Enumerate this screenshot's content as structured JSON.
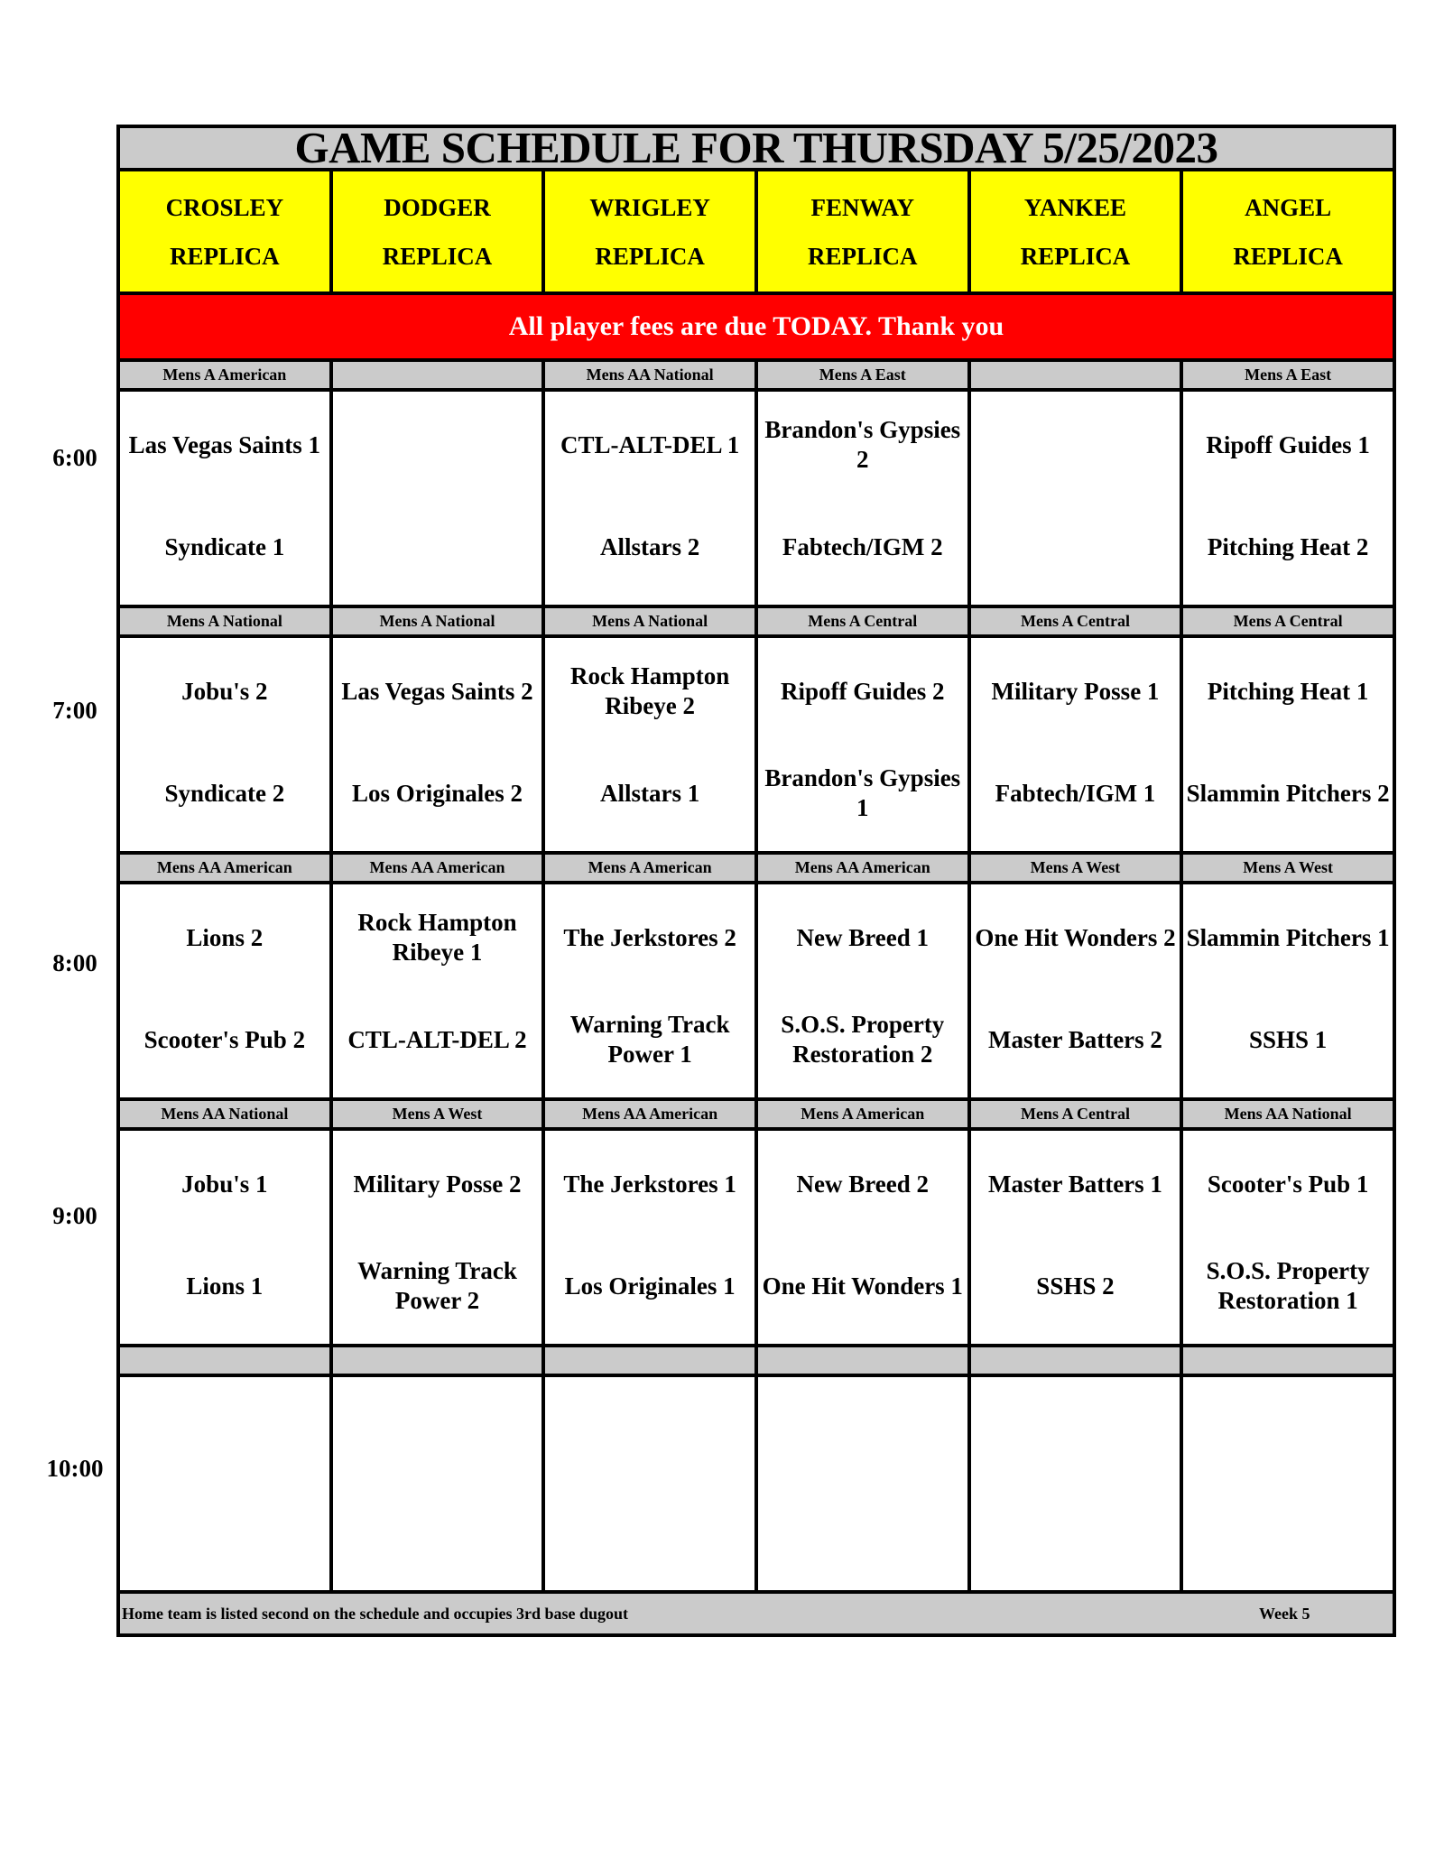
{
  "title": "GAME SCHEDULE FOR THURSDAY 5/25/2023",
  "fields": [
    {
      "name": "CROSLEY",
      "sub": "REPLICA"
    },
    {
      "name": "DODGER",
      "sub": "REPLICA"
    },
    {
      "name": "WRIGLEY",
      "sub": "REPLICA"
    },
    {
      "name": "FENWAY",
      "sub": "REPLICA"
    },
    {
      "name": "YANKEE",
      "sub": "REPLICA"
    },
    {
      "name": "ANGEL",
      "sub": "REPLICA"
    }
  ],
  "notice": "All player fees are due TODAY.  Thank you",
  "slots": [
    {
      "time": "6:00",
      "divisions": [
        "Mens A American",
        "",
        "Mens AA National",
        "Mens A East",
        "",
        "Mens A East"
      ],
      "games": [
        [
          "Las Vegas Saints 1",
          "Syndicate 1"
        ],
        [
          "",
          ""
        ],
        [
          "CTL-ALT-DEL 1",
          "Allstars 2"
        ],
        [
          "Brandon's Gypsies 2",
          "Fabtech/IGM 2"
        ],
        [
          "",
          ""
        ],
        [
          "Ripoff Guides 1",
          "Pitching Heat 2"
        ]
      ]
    },
    {
      "time": "7:00",
      "divisions": [
        "Mens A National",
        "Mens A National",
        "Mens A National",
        "Mens A Central",
        "Mens A Central",
        "Mens A Central"
      ],
      "games": [
        [
          "Jobu's 2",
          "Syndicate 2"
        ],
        [
          "Las Vegas Saints 2",
          "Los Originales 2"
        ],
        [
          "Rock Hampton Ribeye 2",
          "Allstars 1"
        ],
        [
          "Ripoff Guides 2",
          "Brandon's Gypsies 1"
        ],
        [
          "Military Posse 1",
          "Fabtech/IGM 1"
        ],
        [
          "Pitching Heat 1",
          "Slammin Pitchers 2"
        ]
      ]
    },
    {
      "time": "8:00",
      "divisions": [
        "Mens AA American",
        "Mens AA American",
        "Mens A American",
        "Mens AA American",
        "Mens A West",
        "Mens A West"
      ],
      "games": [
        [
          "Lions 2",
          "Scooter's Pub 2"
        ],
        [
          "Rock Hampton Ribeye 1",
          "CTL-ALT-DEL 2"
        ],
        [
          "The Jerkstores 2",
          "Warning Track Power 1"
        ],
        [
          "New Breed 1",
          "S.O.S. Property Restoration 2"
        ],
        [
          "One Hit Wonders 2",
          "Master Batters 2"
        ],
        [
          "Slammin Pitchers 1",
          "SSHS 1"
        ]
      ]
    },
    {
      "time": "9:00",
      "divisions": [
        "Mens AA National",
        "Mens A West",
        "Mens AA American",
        "Mens A American",
        "Mens A Central",
        "Mens AA National"
      ],
      "games": [
        [
          "Jobu's 1",
          "Lions 1"
        ],
        [
          "Military Posse 2",
          "Warning Track Power 2"
        ],
        [
          "The Jerkstores 1",
          "Los Originales 1"
        ],
        [
          "New Breed 2",
          "One Hit Wonders 1"
        ],
        [
          "Master Batters 1",
          "SSHS 2"
        ],
        [
          "Scooter's Pub 1",
          "S.O.S. Property Restoration 1"
        ]
      ]
    },
    {
      "time": "10:00",
      "divisions": [
        "",
        "",
        "",
        "",
        "",
        ""
      ],
      "games": [
        [
          "",
          ""
        ],
        [
          "",
          ""
        ],
        [
          "",
          ""
        ],
        [
          "",
          ""
        ],
        [
          "",
          ""
        ],
        [
          "",
          ""
        ]
      ]
    }
  ],
  "footer": {
    "note": "Home team is listed second on the schedule and occupies 3rd base dugout",
    "week": "Week 5"
  },
  "colors": {
    "header_bg": "#cbcbcb",
    "field_bg": "#ffff00",
    "notice_bg": "#ff0000"
  }
}
